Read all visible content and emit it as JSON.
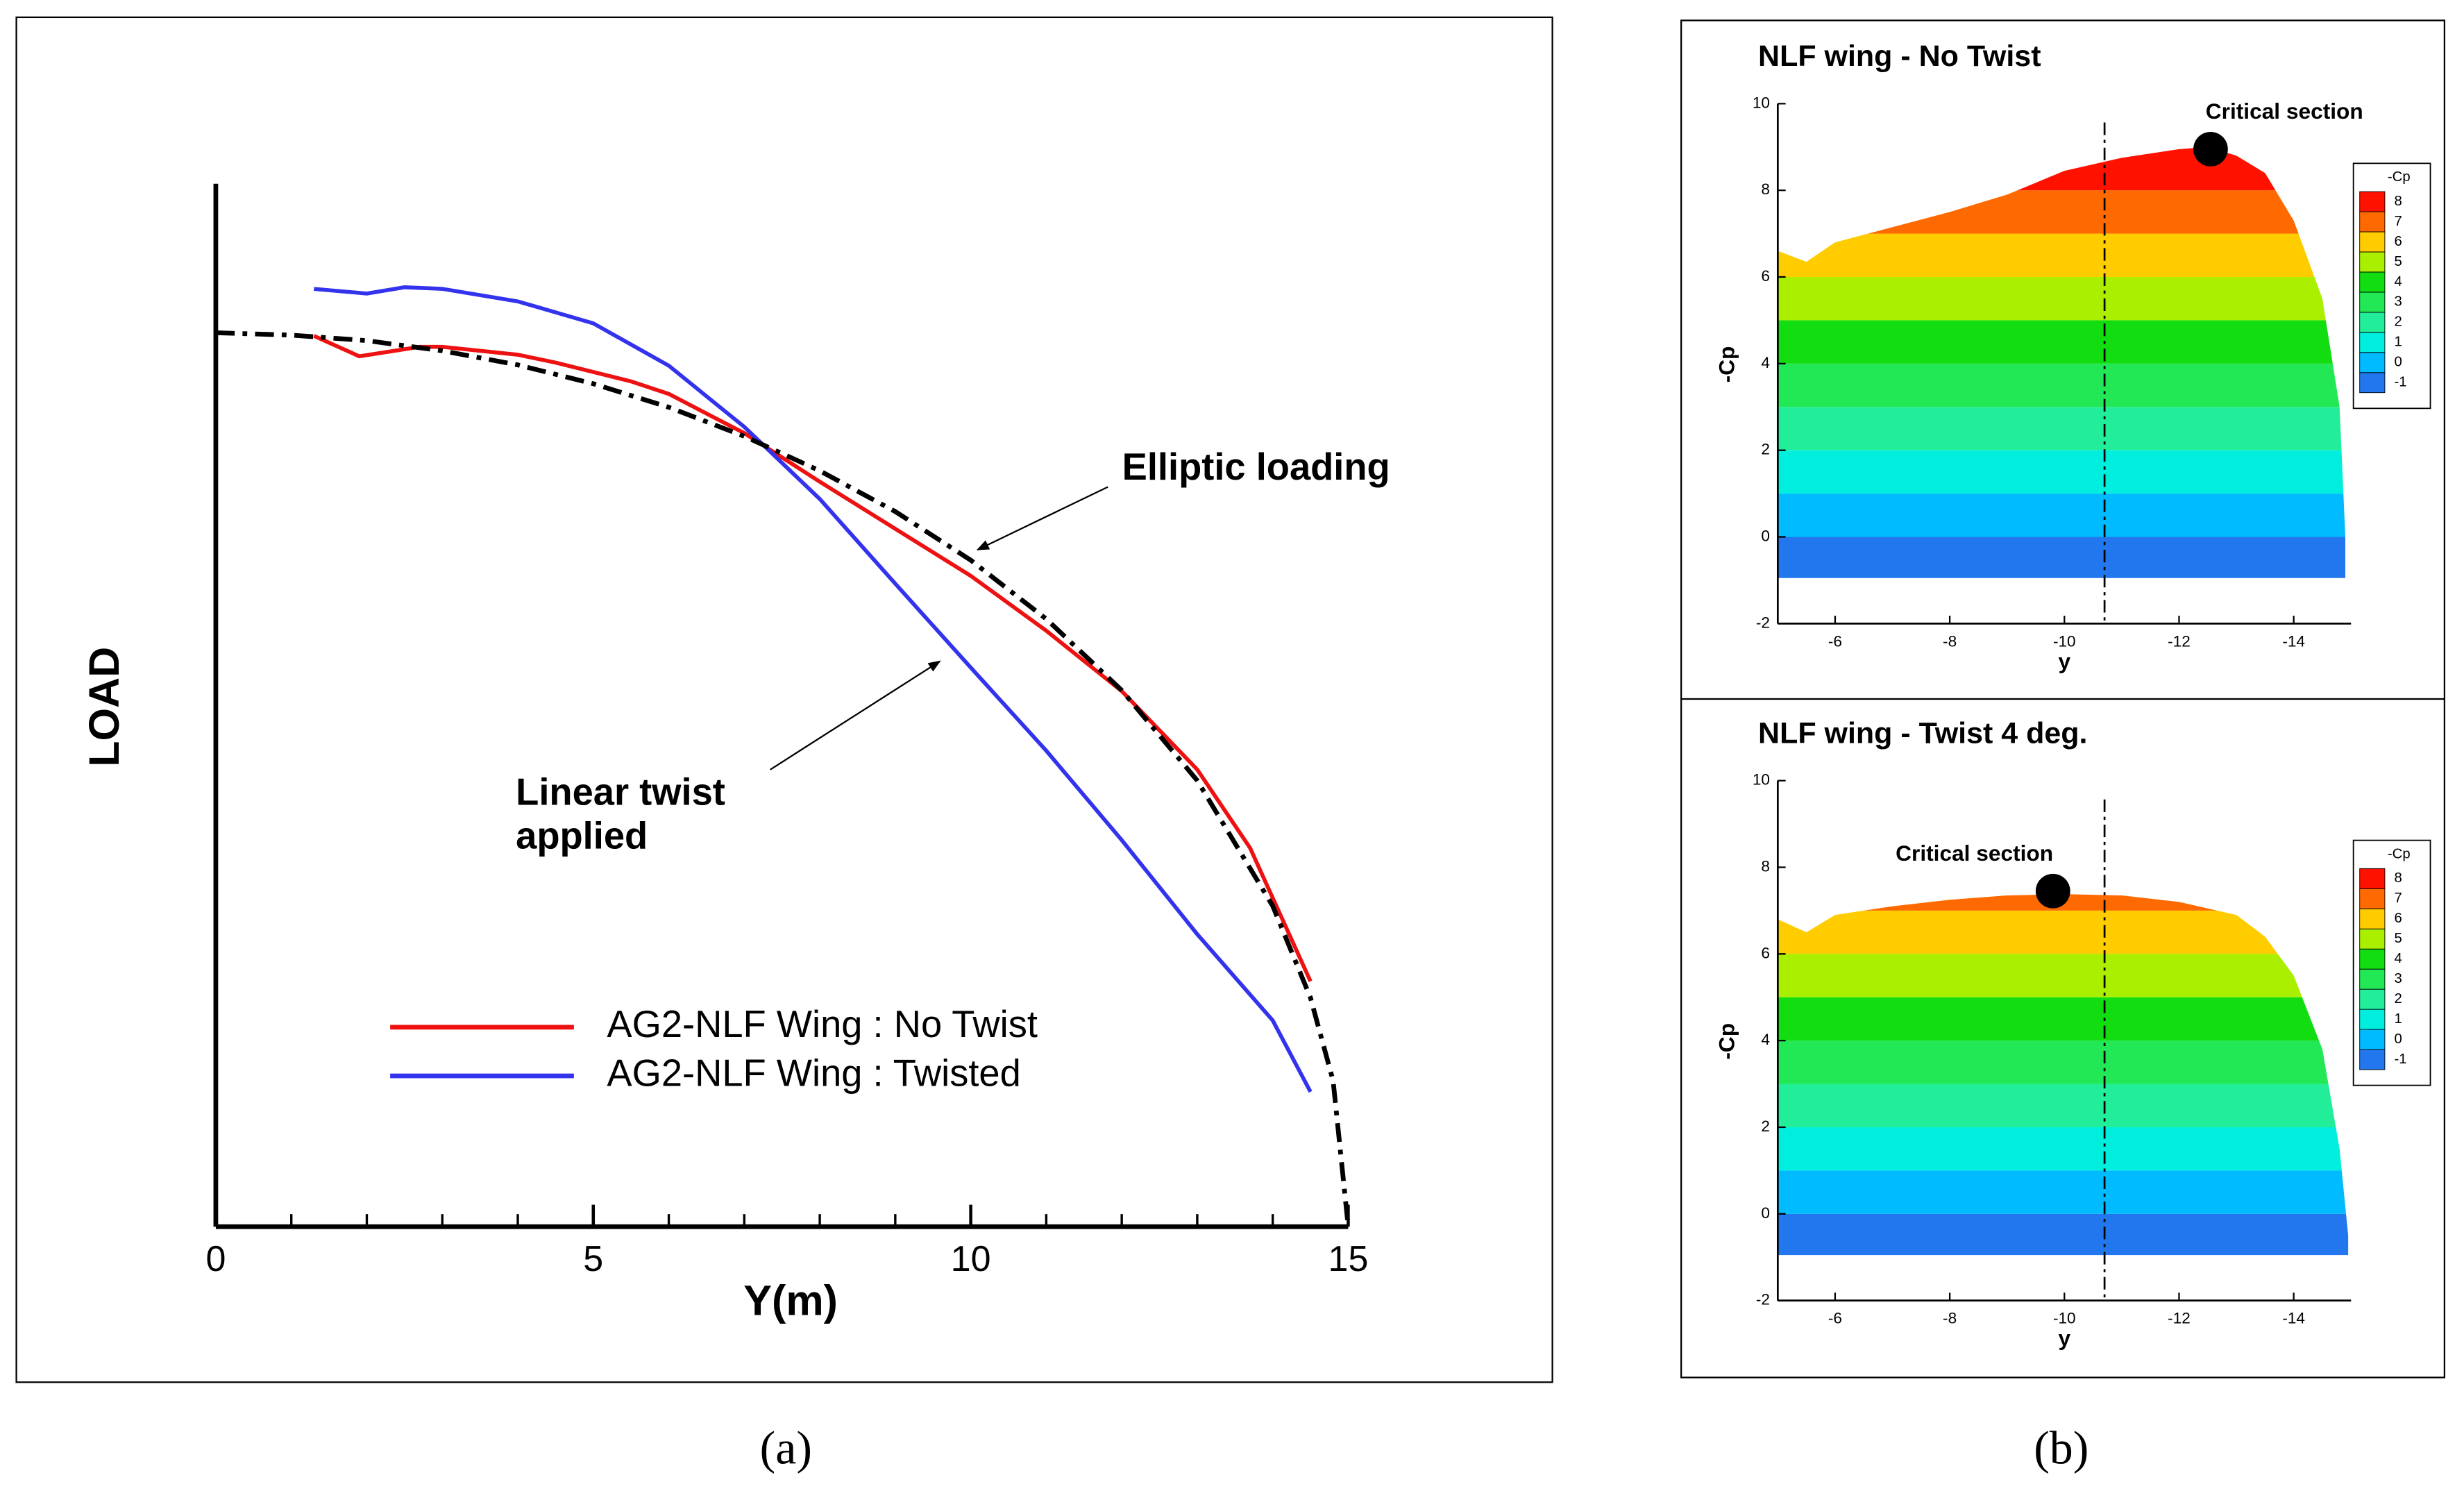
{
  "chart_data": [
    {
      "type": "line",
      "ylabel": "LOAD",
      "xlabel": "Y(m)",
      "xlim": [
        0,
        15
      ],
      "xticks": [
        0,
        5,
        10,
        15
      ],
      "xminor_ticks": [
        1,
        2,
        3,
        4,
        6,
        7,
        8,
        9,
        11,
        12,
        13,
        14
      ],
      "ylim": [
        0,
        1.33
      ],
      "series": [
        {
          "name": "AG2-NLF Wing : No Twist",
          "color": "#ee1111",
          "x": [
            1.3,
            1.9,
            2.7,
            3,
            4,
            4.5,
            5.5,
            6,
            7,
            8,
            9,
            10,
            11,
            12,
            13,
            13.7,
            14.5
          ],
          "values": [
            1.136,
            1.11,
            1.122,
            1.122,
            1.112,
            1.102,
            1.078,
            1.062,
            1.012,
            0.95,
            0.89,
            0.83,
            0.76,
            0.683,
            0.583,
            0.483,
            0.313
          ]
        },
        {
          "name": "AG2-NLF Wing : Twisted",
          "color": "#3333ee",
          "x": [
            1.3,
            2,
            2.5,
            3,
            4,
            5,
            6,
            7,
            8,
            9,
            10,
            11,
            12,
            13,
            14,
            14.5
          ],
          "values": [
            1.196,
            1.19,
            1.198,
            1.196,
            1.18,
            1.152,
            1.098,
            1.02,
            0.928,
            0.82,
            0.713,
            0.607,
            0.493,
            0.373,
            0.263,
            0.172
          ]
        },
        {
          "color": "#000000",
          "x": [
            0,
            1,
            2,
            3,
            4,
            5,
            6,
            7,
            8,
            9,
            10,
            11,
            12,
            13,
            14,
            14.5,
            14.8,
            15
          ],
          "values": [
            1.14,
            1.137,
            1.13,
            1.117,
            1.099,
            1.075,
            1.045,
            1.008,
            0.964,
            0.912,
            0.85,
            0.775,
            0.684,
            0.569,
            0.409,
            0.292,
            0.186,
            0
          ]
        }
      ],
      "annotations": [
        "Elliptic loading",
        "Linear twist",
        "applied"
      ]
    },
    {
      "type": "contour",
      "title": "NLF wing - No Twist",
      "xlabel": "y",
      "ylabel": "-Cp",
      "xlim": [
        -5,
        -15
      ],
      "xticks": [
        -6,
        -8,
        -10,
        -12,
        -14
      ],
      "ylim": [
        -2,
        10
      ],
      "yticks": [
        -2,
        0,
        2,
        4,
        6,
        8,
        10
      ],
      "colorbar_title": "-Cp",
      "levels": [
        -1,
        0,
        1,
        2,
        3,
        4,
        5,
        6,
        7,
        8
      ],
      "colors": [
        "#2277ee",
        "#00bbff",
        "#00eedd",
        "#22ee99",
        "#22e855",
        "#11dd11",
        "#aaee00",
        "#ffcc00",
        "#ff6a00",
        "#ff1100"
      ],
      "outline": {
        "x": [
          -5,
          -5.5,
          -6,
          -7,
          -8,
          -9,
          -10,
          -11,
          -12,
          -12.5,
          -13,
          -13.5,
          -14,
          -14.5,
          -14.8,
          -14.9,
          -14.9
        ],
        "values": [
          6.6,
          6.35,
          6.8,
          7.15,
          7.5,
          7.9,
          8.45,
          8.75,
          8.95,
          9,
          8.8,
          8.4,
          7.3,
          5.5,
          3,
          0,
          -0.95
        ]
      },
      "dashed_line_x": -10.7,
      "critical_point": {
        "label": "Critical section",
        "x": -12.55,
        "value": 8.95
      }
    },
    {
      "type": "contour",
      "title": "NLF wing - Twist 4 deg.",
      "xlabel": "y",
      "ylabel": "-Cp",
      "xlim": [
        -5,
        -15
      ],
      "xticks": [
        -6,
        -8,
        -10,
        -12,
        -14
      ],
      "ylim": [
        -2,
        10
      ],
      "yticks": [
        -2,
        0,
        2,
        4,
        6,
        8,
        10
      ],
      "colorbar_title": "-Cp",
      "levels": [
        -1,
        0,
        1,
        2,
        3,
        4,
        5,
        6,
        7,
        8
      ],
      "colors": [
        "#2277ee",
        "#00bbff",
        "#00eedd",
        "#22ee99",
        "#22e855",
        "#11dd11",
        "#aaee00",
        "#ffcc00",
        "#ff6a00",
        "#ff1100"
      ],
      "outline": {
        "x": [
          -5,
          -5.5,
          -6,
          -7,
          -8,
          -9,
          -10,
          -11,
          -12,
          -13,
          -13.5,
          -14,
          -14.5,
          -14.8,
          -14.95,
          -14.95
        ],
        "values": [
          6.8,
          6.5,
          6.9,
          7.1,
          7.25,
          7.35,
          7.38,
          7.35,
          7.2,
          6.9,
          6.4,
          5.5,
          3.8,
          1.5,
          -0.5,
          -0.95
        ]
      },
      "dashed_line_x": -10.7,
      "critical_point": {
        "label": "Critical section",
        "x": -9.8,
        "value": 7.45
      }
    }
  ],
  "captions": [
    "(a)",
    "(b)"
  ]
}
